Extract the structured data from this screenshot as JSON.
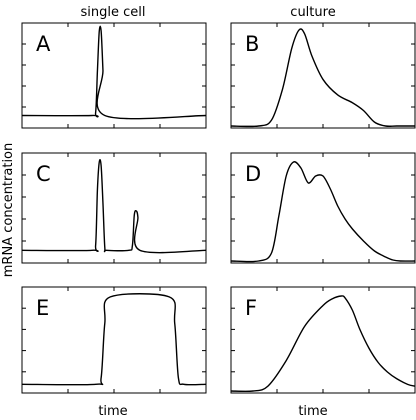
{
  "labels": {
    "left_column": "single cell",
    "right_column": "culture",
    "ylabel": "mRNA concentration",
    "xlabel_left": "time",
    "xlabel_right": "time"
  },
  "chart_data": [
    {
      "type": "line",
      "panel": "A",
      "column": "single cell",
      "xlim": [
        0,
        1
      ],
      "ylim": [
        0,
        1
      ],
      "x": [
        0.0,
        0.38,
        0.4,
        0.41,
        0.42,
        0.43,
        0.44,
        0.45,
        1.0
      ],
      "y": [
        0.05,
        0.05,
        0.08,
        0.55,
        0.99,
        0.99,
        0.55,
        0.05,
        0.05
      ]
    },
    {
      "type": "line",
      "panel": "B",
      "column": "culture",
      "xlim": [
        0,
        1
      ],
      "ylim": [
        0,
        1
      ],
      "x": [
        0.0,
        0.15,
        0.22,
        0.28,
        0.33,
        0.37,
        0.4,
        0.44,
        0.5,
        0.58,
        0.66,
        0.72,
        0.78,
        0.84,
        0.9,
        1.0
      ],
      "y": [
        0.0,
        0.0,
        0.06,
        0.38,
        0.8,
        0.99,
        0.95,
        0.72,
        0.48,
        0.32,
        0.24,
        0.16,
        0.04,
        0.0,
        0.0,
        0.0
      ]
    },
    {
      "type": "line",
      "panel": "C",
      "column": "single cell",
      "xlim": [
        0,
        1
      ],
      "ylim": [
        0,
        1
      ],
      "x": [
        0.0,
        0.38,
        0.4,
        0.41,
        0.42,
        0.43,
        0.44,
        0.45,
        0.46,
        0.58,
        0.6,
        0.61,
        0.62,
        0.63,
        0.64,
        1.0
      ],
      "y": [
        0.05,
        0.05,
        0.1,
        0.7,
        0.99,
        0.95,
        0.55,
        0.08,
        0.05,
        0.05,
        0.1,
        0.42,
        0.47,
        0.4,
        0.05,
        0.05
      ]
    },
    {
      "type": "line",
      "panel": "D",
      "column": "culture",
      "xlim": [
        0,
        1
      ],
      "ylim": [
        0,
        1
      ],
      "x": [
        0.0,
        0.15,
        0.22,
        0.26,
        0.3,
        0.34,
        0.38,
        0.42,
        0.46,
        0.5,
        0.54,
        0.58,
        0.62,
        0.66,
        0.72,
        0.78,
        0.84,
        0.88,
        0.92,
        1.0
      ],
      "y": [
        0.0,
        0.0,
        0.08,
        0.45,
        0.85,
        0.99,
        0.93,
        0.78,
        0.85,
        0.85,
        0.72,
        0.55,
        0.42,
        0.32,
        0.2,
        0.1,
        0.04,
        0.01,
        0.0,
        0.0
      ]
    },
    {
      "type": "line",
      "panel": "E",
      "column": "single cell",
      "xlim": [
        0,
        1
      ],
      "ylim": [
        0,
        1
      ],
      "x": [
        0.0,
        0.4,
        0.43,
        0.45,
        0.48,
        0.8,
        0.83,
        0.85,
        0.88,
        1.0
      ],
      "y": [
        0.03,
        0.03,
        0.1,
        0.7,
        0.99,
        0.99,
        0.7,
        0.1,
        0.03,
        0.03
      ]
    },
    {
      "type": "line",
      "panel": "F",
      "column": "culture",
      "xlim": [
        0,
        1
      ],
      "ylim": [
        0,
        1
      ],
      "x": [
        0.0,
        0.12,
        0.2,
        0.3,
        0.4,
        0.5,
        0.55,
        0.6,
        0.62,
        0.66,
        0.7,
        0.75,
        0.8,
        0.85,
        0.9,
        0.96,
        1.0
      ],
      "y": [
        0.0,
        0.0,
        0.05,
        0.32,
        0.68,
        0.9,
        0.97,
        1.0,
        0.98,
        0.85,
        0.65,
        0.45,
        0.3,
        0.2,
        0.13,
        0.07,
        0.05
      ]
    }
  ]
}
